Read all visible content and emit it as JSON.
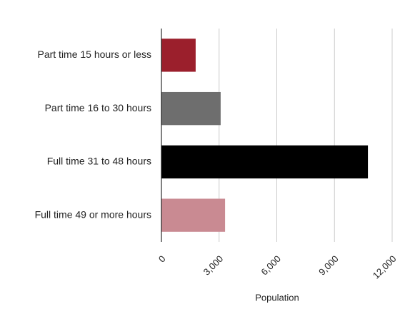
{
  "chart_data": {
    "type": "hbar",
    "categories": [
      "Part time 15 hours or less",
      "Part time 16 to 30 hours",
      "Full time 31 to 48 hours",
      "Full time 49 or more hours"
    ],
    "values": [
      1780,
      3080,
      10740,
      3310
    ],
    "colors": [
      "#9b1f2c",
      "#6e6e6e",
      "#000000",
      "#c98a92"
    ],
    "x_label": "Population",
    "xlim": [
      0,
      12000
    ],
    "xticks": [
      0,
      {
        "value": 3000,
        "label": "3,000"
      },
      {
        "value": 6000,
        "label": "6,000"
      },
      {
        "value": 9000,
        "label": "9,000"
      },
      {
        "value": 12000,
        "label": "12,000"
      }
    ],
    "grid": true
  }
}
